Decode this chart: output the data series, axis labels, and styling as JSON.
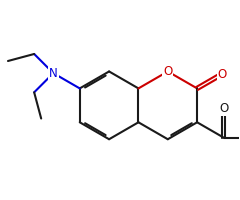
{
  "bond_color": "#1a1a1a",
  "o_color": "#cc0000",
  "n_color": "#0000dd",
  "bg_color": "#ffffff",
  "lw": 1.5,
  "dbo": 0.055,
  "figsize": [
    2.4,
    2.0
  ],
  "dpi": 100,
  "fs": 8.5,
  "xlim": [
    -1.5,
    5.5
  ],
  "ylim": [
    -2.2,
    3.0
  ]
}
